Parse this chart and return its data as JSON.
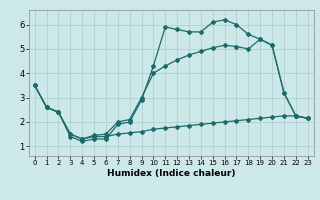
{
  "title": "",
  "xlabel": "Humidex (Indice chaleur)",
  "ylabel": "",
  "background_color": "#cce8e8",
  "grid_color": "#aacccc",
  "line_color": "#1a6b6b",
  "xlim": [
    -0.5,
    23.5
  ],
  "ylim": [
    0.6,
    6.6
  ],
  "xticks": [
    0,
    1,
    2,
    3,
    4,
    5,
    6,
    7,
    8,
    9,
    10,
    11,
    12,
    13,
    14,
    15,
    16,
    17,
    18,
    19,
    20,
    21,
    22,
    23
  ],
  "yticks": [
    1,
    2,
    3,
    4,
    5,
    6
  ],
  "series": [
    {
      "x": [
        0,
        1,
        2,
        3,
        4,
        5,
        6,
        7,
        8,
        9,
        10,
        11,
        12,
        13,
        14,
        15,
        16,
        17,
        18,
        19,
        20,
        21,
        22,
        23
      ],
      "y": [
        3.5,
        2.6,
        2.4,
        1.4,
        1.2,
        1.3,
        1.3,
        1.9,
        2.0,
        2.9,
        4.3,
        5.9,
        5.8,
        5.7,
        5.7,
        6.1,
        6.2,
        6.0,
        5.6,
        5.4,
        5.15,
        3.2,
        2.25,
        2.15
      ]
    },
    {
      "x": [
        0,
        1,
        2,
        3,
        4,
        5,
        6,
        7,
        8,
        9,
        10,
        11,
        12,
        13,
        14,
        15,
        16,
        17,
        18,
        19,
        20,
        21,
        22,
        23
      ],
      "y": [
        3.5,
        2.6,
        2.4,
        1.5,
        1.3,
        1.4,
        1.4,
        1.5,
        1.55,
        1.6,
        1.7,
        1.75,
        1.8,
        1.85,
        1.9,
        1.95,
        2.0,
        2.05,
        2.1,
        2.15,
        2.2,
        2.25,
        2.25,
        2.15
      ]
    },
    {
      "x": [
        0,
        1,
        2,
        3,
        4,
        5,
        6,
        7,
        8,
        9,
        10,
        11,
        12,
        13,
        14,
        15,
        16,
        17,
        18,
        19,
        20,
        21,
        22,
        23
      ],
      "y": [
        3.5,
        2.6,
        2.4,
        1.5,
        1.3,
        1.45,
        1.5,
        2.0,
        2.1,
        3.0,
        4.0,
        4.3,
        4.55,
        4.75,
        4.9,
        5.05,
        5.15,
        5.1,
        5.0,
        5.4,
        5.15,
        3.2,
        2.25,
        2.15
      ]
    }
  ]
}
